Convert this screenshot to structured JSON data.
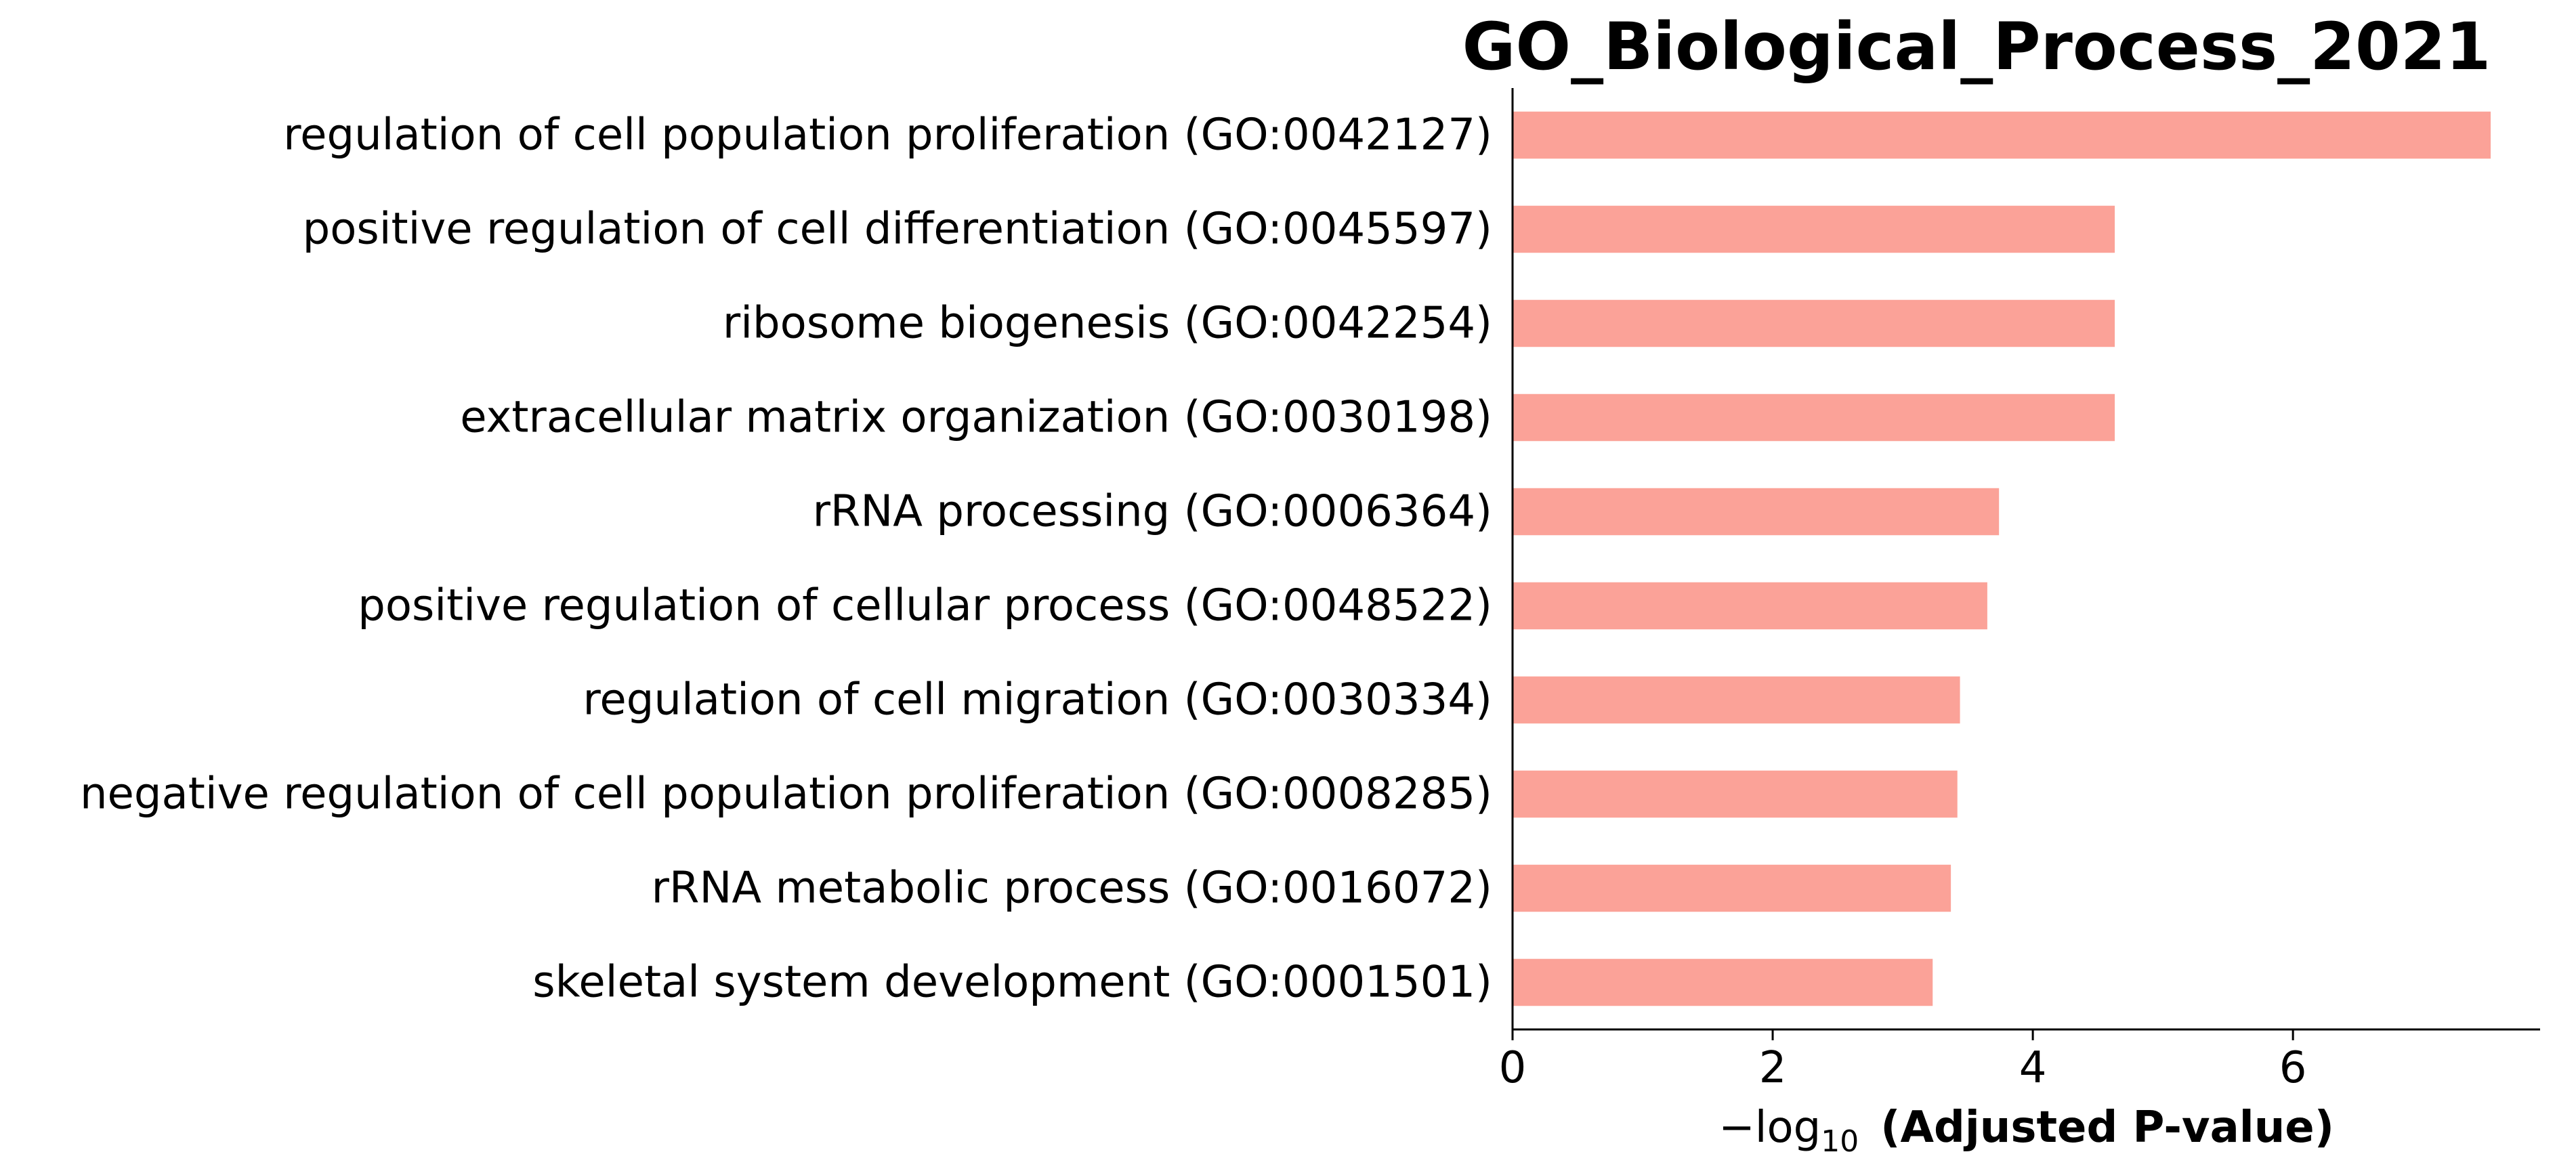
{
  "chart_data": {
    "type": "bar",
    "orientation": "horizontal",
    "title": "GO_Biological_Process_2021",
    "xlabel": {
      "prefix": "−log",
      "subscript": "10",
      "bold": "(Adjusted P-value)"
    },
    "ylabel": "",
    "xlim": [
      0,
      7.9
    ],
    "xticks": [
      0,
      2,
      4,
      6
    ],
    "bar_color": "#fba298",
    "grid": false,
    "categories": [
      "regulation of cell population proliferation (GO:0042127)",
      "positive regulation of cell differentiation (GO:0045597)",
      "ribosome biogenesis (GO:0042254)",
      "extracellular matrix organization (GO:0030198)",
      "rRNA processing (GO:0006364)",
      "positive regulation of cellular process (GO:0048522)",
      "regulation of cell migration (GO:0030334)",
      "negative regulation of cell population proliferation (GO:0008285)",
      "rRNA metabolic process (GO:0016072)",
      "skeletal system development (GO:0001501)"
    ],
    "values": [
      7.52,
      4.63,
      4.63,
      4.63,
      3.74,
      3.65,
      3.44,
      3.42,
      3.37,
      3.23
    ]
  }
}
